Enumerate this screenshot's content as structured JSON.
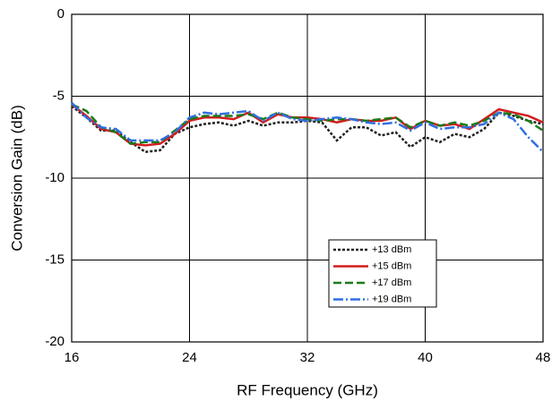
{
  "chart_data": {
    "type": "line",
    "x_label": "RF Frequency (GHz)",
    "y_label": "Conversion Gain (dB)",
    "x": [
      16,
      17,
      18,
      19,
      20,
      21,
      22,
      23,
      24,
      25,
      26,
      27,
      28,
      29,
      30,
      31,
      32,
      33,
      34,
      35,
      36,
      37,
      38,
      39,
      40,
      41,
      42,
      43,
      44,
      45,
      46,
      47,
      48
    ],
    "series": [
      {
        "name": "+13 dBm",
        "color": "#222222",
        "style": "dotted",
        "values": [
          -5.6,
          -6.3,
          -7.1,
          -7.1,
          -7.8,
          -8.4,
          -8.3,
          -7.3,
          -6.9,
          -6.7,
          -6.6,
          -6.8,
          -6.5,
          -6.8,
          -6.6,
          -6.6,
          -6.5,
          -6.6,
          -7.7,
          -6.9,
          -6.9,
          -7.4,
          -7.2,
          -8.1,
          -7.5,
          -7.8,
          -7.3,
          -7.5,
          -7.0,
          -6.0,
          -6.2,
          -6.5,
          -6.7
        ]
      },
      {
        "name": "+15 dBm",
        "color": "#d41c1c",
        "style": "solid",
        "values": [
          -5.5,
          -6.2,
          -7.0,
          -7.2,
          -7.9,
          -8.0,
          -7.9,
          -7.3,
          -6.5,
          -6.3,
          -6.3,
          -6.4,
          -6.0,
          -6.6,
          -6.1,
          -6.3,
          -6.3,
          -6.4,
          -6.6,
          -6.4,
          -6.5,
          -6.5,
          -6.3,
          -7.0,
          -6.5,
          -6.8,
          -6.7,
          -7.0,
          -6.4,
          -5.8,
          -6.0,
          -6.2,
          -6.6
        ]
      },
      {
        "name": "+17 dBm",
        "color": "#1a7a1a",
        "style": "dashed",
        "values": [
          -5.5,
          -5.9,
          -6.9,
          -7.2,
          -7.9,
          -7.8,
          -7.8,
          -7.1,
          -6.4,
          -6.2,
          -6.2,
          -6.2,
          -6.1,
          -6.4,
          -6.0,
          -6.3,
          -6.4,
          -6.5,
          -6.4,
          -6.4,
          -6.5,
          -6.4,
          -6.3,
          -6.9,
          -6.5,
          -6.8,
          -6.6,
          -6.8,
          -6.5,
          -6.0,
          -6.1,
          -6.5,
          -7.1
        ]
      },
      {
        "name": "+19 dBm",
        "color": "#2f6fe0",
        "style": "dashdot",
        "values": [
          -5.4,
          -6.3,
          -6.9,
          -7.0,
          -7.7,
          -7.7,
          -7.7,
          -7.2,
          -6.3,
          -6.0,
          -6.1,
          -6.0,
          -5.9,
          -6.5,
          -6.0,
          -6.4,
          -6.5,
          -6.4,
          -6.3,
          -6.4,
          -6.6,
          -6.7,
          -6.6,
          -7.1,
          -6.6,
          -7.0,
          -6.9,
          -6.9,
          -6.7,
          -6.0,
          -6.4,
          -7.5,
          -8.4
        ]
      }
    ],
    "xlim": [
      16,
      48
    ],
    "ylim": [
      -20,
      0
    ],
    "xticks": [
      16,
      24,
      32,
      40,
      48
    ],
    "yticks": [
      0,
      -5,
      -10,
      -15,
      -20
    ],
    "grid": true
  }
}
